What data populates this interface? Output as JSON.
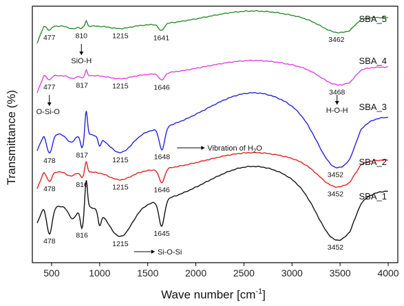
{
  "chart_data": {
    "type": "line",
    "xlabel": "Wave number [cm",
    "xlabel_sup": "-1",
    "xlabel_end": "]",
    "ylabel": "Transmittance (%)",
    "xlim": [
      300,
      4100
    ],
    "xticks": [
      500,
      1000,
      1500,
      2000,
      2500,
      3000,
      3500,
      4000
    ],
    "xtick_labels": [
      "500",
      "1000",
      "1500",
      "2000",
      "2500",
      "3000",
      "3500",
      "4000"
    ],
    "yticks_shown": false,
    "series": [
      {
        "name": "SBA_5",
        "color": "#2e8b2e",
        "peak_labels": [
          {
            "text": "477",
            "x": 477
          },
          {
            "text": "810",
            "x": 810
          },
          {
            "text": "1215",
            "x": 1215
          },
          {
            "text": "1641",
            "x": 1641
          },
          {
            "text": "3462",
            "x": 3462
          }
        ]
      },
      {
        "name": "SBA_4",
        "color": "#e040e0",
        "peak_labels": [
          {
            "text": "477",
            "x": 477
          },
          {
            "text": "817",
            "x": 817
          },
          {
            "text": "1215",
            "x": 1215
          },
          {
            "text": "1646",
            "x": 1646
          },
          {
            "text": "3468",
            "x": 3468
          }
        ]
      },
      {
        "name": "SBA_3",
        "color": "#2222dd",
        "peak_labels": [
          {
            "text": "478",
            "x": 478
          },
          {
            "text": "817",
            "x": 817
          },
          {
            "text": "1215",
            "x": 1215
          },
          {
            "text": "1648",
            "x": 1648
          },
          {
            "text": "3452",
            "x": 3452
          }
        ]
      },
      {
        "name": "SBA_2",
        "color": "#e02020",
        "peak_labels": [
          {
            "text": "478",
            "x": 478
          },
          {
            "text": "816",
            "x": 816
          },
          {
            "text": "1215",
            "x": 1215
          },
          {
            "text": "1646",
            "x": 1646
          },
          {
            "text": "3452",
            "x": 3452
          }
        ]
      },
      {
        "name": "SBA_1",
        "color": "#111111",
        "peak_labels": [
          {
            "text": "478",
            "x": 478
          },
          {
            "text": "816",
            "x": 816
          },
          {
            "text": "1215",
            "x": 1215
          },
          {
            "text": "1645",
            "x": 1645
          },
          {
            "text": "3452",
            "x": 3452
          }
        ]
      }
    ],
    "annotations": [
      {
        "text": "SiO-H",
        "x": 810
      },
      {
        "text": "O-Si-O",
        "x": 477
      },
      {
        "text": "H-O-H",
        "x": 3468
      },
      {
        "text": "Vibration of H",
        "sub": "2",
        "tail": "O",
        "x": 1648
      },
      {
        "text": "Si-O-Si",
        "x": 1215
      }
    ]
  }
}
